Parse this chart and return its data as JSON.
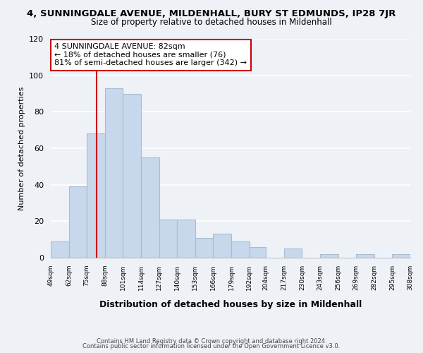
{
  "title": "4, SUNNINGDALE AVENUE, MILDENHALL, BURY ST EDMUNDS, IP28 7JR",
  "subtitle": "Size of property relative to detached houses in Mildenhall",
  "xlabel": "Distribution of detached houses by size in Mildenhall",
  "ylabel": "Number of detached properties",
  "bar_values": [
    9,
    39,
    68,
    93,
    90,
    55,
    21,
    21,
    11,
    13,
    9,
    6,
    0,
    5,
    0,
    2,
    0,
    2,
    0,
    2
  ],
  "bin_edges": [
    49,
    62,
    75,
    88,
    101,
    114,
    127,
    140,
    153,
    166,
    179,
    192,
    204,
    217,
    230,
    243,
    256,
    269,
    282,
    295,
    308
  ],
  "tick_labels": [
    "49sqm",
    "62sqm",
    "75sqm",
    "88sqm",
    "101sqm",
    "114sqm",
    "127sqm",
    "140sqm",
    "153sqm",
    "166sqm",
    "179sqm",
    "192sqm",
    "204sqm",
    "217sqm",
    "230sqm",
    "243sqm",
    "256sqm",
    "269sqm",
    "282sqm",
    "295sqm",
    "308sqm"
  ],
  "bar_color": "#c8d8ec",
  "bar_edge_color": "#a8bcd0",
  "vline_x": 82,
  "vline_color": "#cc0000",
  "annotation_title": "4 SUNNINGDALE AVENUE: 82sqm",
  "annotation_line1": "← 18% of detached houses are smaller (76)",
  "annotation_line2": "81% of semi-detached houses are larger (342) →",
  "annotation_box_edge": "#cc0000",
  "ylim": [
    0,
    120
  ],
  "yticks": [
    0,
    20,
    40,
    60,
    80,
    100,
    120
  ],
  "footer1": "Contains HM Land Registry data © Crown copyright and database right 2024.",
  "footer2": "Contains public sector information licensed under the Open Government Licence v3.0.",
  "bg_color": "#eef2f7",
  "grid_color": "#ffffff"
}
